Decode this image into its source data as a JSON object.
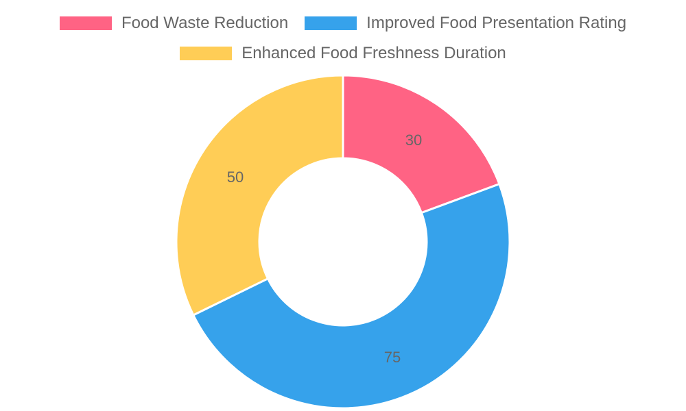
{
  "chart_data": {
    "type": "doughnut",
    "title": "",
    "categories": [
      "Food Waste Reduction",
      "Improved Food Presentation Rating",
      "Enhanced Food Freshness Duration"
    ],
    "values": [
      30,
      75,
      50
    ],
    "colors": [
      "#ff6384",
      "#36a2eb",
      "#ffcd56"
    ],
    "legend_position": "top",
    "data_labels": [
      "30",
      "75",
      "50"
    ]
  },
  "legend": {
    "items": [
      {
        "label": "Food Waste Reduction",
        "color": "#ff6384"
      },
      {
        "label": "Improved Food Presentation Rating",
        "color": "#36a2eb"
      },
      {
        "label": "Enhanced Food Freshness Duration",
        "color": "#ffcd56"
      }
    ]
  },
  "labels": {
    "slice0": "30",
    "slice1": "75",
    "slice2": "50"
  }
}
